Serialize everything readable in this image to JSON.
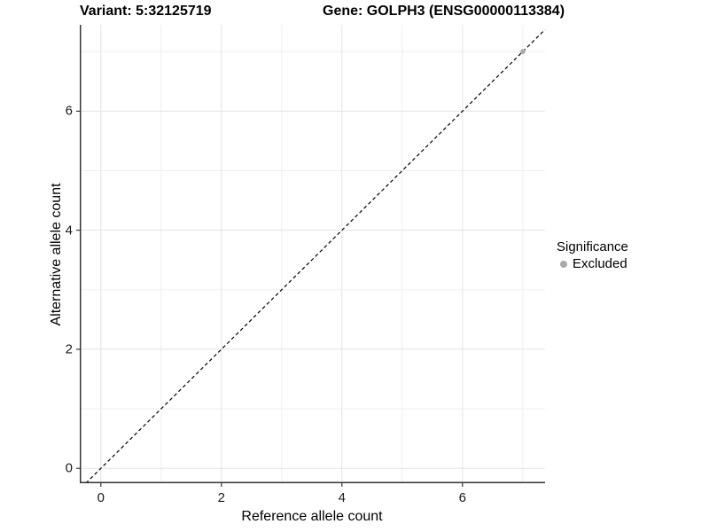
{
  "chart_data": {
    "type": "scatter",
    "title_left": "Variant: 5:32125719",
    "title_right": "Gene: GOLPH3 (ENSG00000113384)",
    "xlabel": "Reference allele count",
    "ylabel": "Alternative allele count",
    "xlim": [
      -0.35,
      7.37
    ],
    "ylim": [
      -0.25,
      7.45
    ],
    "x_major_ticks": [
      0,
      2,
      4,
      6
    ],
    "y_major_ticks": [
      0,
      2,
      4,
      6
    ],
    "minor_grid_step": 1,
    "grid": true,
    "points": [
      {
        "x": 7,
        "y": 7,
        "significance": "Excluded"
      }
    ],
    "abline": {
      "slope": 1,
      "intercept": 0,
      "style": "dashed"
    },
    "legend": {
      "title": "Significance",
      "position": "right",
      "items": [
        {
          "label": "Excluded",
          "color": "#a9a9a9"
        }
      ]
    },
    "colors": {
      "background": "#ffffff",
      "grid_major": "#e2e2e2",
      "grid_minor": "#efefef",
      "axis_line": "#333333",
      "tick_mark": "#333333",
      "tick_text": "#1a1a1a",
      "abline": "#000000",
      "point_excluded": "#a9a9a9"
    }
  }
}
